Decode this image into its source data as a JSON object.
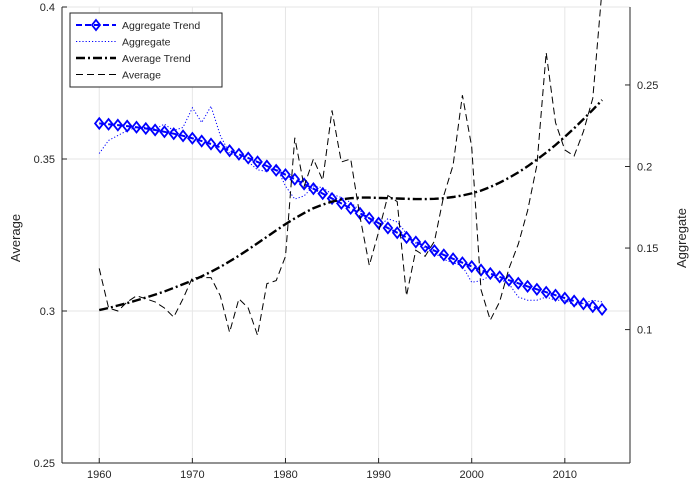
{
  "chart_data": {
    "type": "line",
    "title": "",
    "xlabel": "",
    "ylabel_left": "Average",
    "ylabel_right": "Aggregate",
    "xlim": [
      1956,
      2017
    ],
    "ylim_left": [
      0.25,
      0.4
    ],
    "ylim_right": [
      0.0182,
      0.2978
    ],
    "x_ticks": [
      1960,
      1970,
      1980,
      1990,
      2000,
      2010
    ],
    "x_tick_labels": [
      "1960",
      "1970",
      "1980",
      "1990",
      "2000",
      "2010"
    ],
    "y_left_ticks": [
      0.25,
      0.3,
      0.35,
      0.4
    ],
    "y_left_tick_labels": [
      "0.25",
      "0.3",
      "0.35",
      "0.4"
    ],
    "y_right_ticks": [
      0.1,
      0.15,
      0.2,
      0.25
    ],
    "y_right_tick_labels": [
      "0.1",
      "0.15",
      "0.2",
      "0.25"
    ],
    "grid": true,
    "legend_position": "top-left",
    "series": [
      {
        "name": "Aggregate Trend",
        "axis": "right",
        "style": "dashed-diamond",
        "color": "#0000ff",
        "x": [
          1960,
          1961,
          1962,
          1963,
          1964,
          1965,
          1966,
          1967,
          1968,
          1969,
          1970,
          1971,
          1972,
          1973,
          1974,
          1975,
          1976,
          1977,
          1978,
          1979,
          1980,
          1981,
          1982,
          1983,
          1984,
          1985,
          1986,
          1987,
          1988,
          1989,
          1990,
          1991,
          1992,
          1993,
          1994,
          1995,
          1996,
          1997,
          1998,
          1999,
          2000,
          2001,
          2002,
          2003,
          2004,
          2005,
          2006,
          2007,
          2008,
          2009,
          2010,
          2011,
          2012,
          2013,
          2014
        ],
        "y": [
          0.2264,
          0.2259,
          0.2254,
          0.2248,
          0.2241,
          0.2233,
          0.2224,
          0.2213,
          0.2201,
          0.2188,
          0.2173,
          0.2156,
          0.2138,
          0.2118,
          0.2097,
          0.2075,
          0.2052,
          0.2028,
          0.2003,
          0.1977,
          0.195,
          0.1922,
          0.1893,
          0.1864,
          0.1834,
          0.1804,
          0.1774,
          0.1743,
          0.1713,
          0.1683,
          0.1653,
          0.1623,
          0.1594,
          0.1565,
          0.1537,
          0.151,
          0.1484,
          0.1458,
          0.1434,
          0.141,
          0.1387,
          0.1365,
          0.1344,
          0.1323,
          0.1303,
          0.1284,
          0.1265,
          0.1247,
          0.1229,
          0.1211,
          0.1193,
          0.1175,
          0.1158,
          0.1141,
          0.1124
        ]
      },
      {
        "name": "Aggregate",
        "axis": "right",
        "style": "dotted",
        "color": "#0000ff",
        "x": [
          1960,
          1961,
          1962,
          1963,
          1964,
          1965,
          1966,
          1967,
          1968,
          1969,
          1970,
          1971,
          1972,
          1973,
          1974,
          1975,
          1976,
          1977,
          1978,
          1979,
          1980,
          1981,
          1982,
          1983,
          1984,
          1985,
          1986,
          1987,
          1988,
          1989,
          1990,
          1991,
          1992,
          1993,
          1994,
          1995,
          1996,
          1997,
          1998,
          1999,
          2000,
          2001,
          2002,
          2003,
          2004,
          2005,
          2006,
          2007,
          2008,
          2009,
          2010,
          2011,
          2012,
          2013,
          2014
        ],
        "y": [
          0.208,
          0.216,
          0.219,
          0.222,
          0.224,
          0.224,
          0.223,
          0.226,
          0.222,
          0.224,
          0.236,
          0.227,
          0.237,
          0.219,
          0.208,
          0.206,
          0.203,
          0.198,
          0.197,
          0.2,
          0.188,
          0.18,
          0.182,
          0.188,
          0.187,
          0.183,
          0.181,
          0.178,
          0.173,
          0.168,
          0.163,
          0.168,
          0.166,
          0.159,
          0.153,
          0.15,
          0.147,
          0.143,
          0.141,
          0.139,
          0.129,
          0.13,
          0.133,
          0.131,
          0.128,
          0.12,
          0.118,
          0.118,
          0.12,
          0.118,
          0.118,
          0.115,
          0.116,
          0.118,
          0.117
        ]
      },
      {
        "name": "Average Trend",
        "axis": "left",
        "style": "dash-dot",
        "color": "#000000",
        "x": [
          1960,
          1961,
          1962,
          1963,
          1964,
          1965,
          1966,
          1967,
          1968,
          1969,
          1970,
          1971,
          1972,
          1973,
          1974,
          1975,
          1976,
          1977,
          1978,
          1979,
          1980,
          1981,
          1982,
          1983,
          1984,
          1985,
          1986,
          1987,
          1988,
          1989,
          1990,
          1991,
          1992,
          1993,
          1994,
          1995,
          1996,
          1997,
          1998,
          1999,
          2000,
          2001,
          2002,
          2003,
          2004,
          2005,
          2006,
          2007,
          2008,
          2009,
          2010,
          2011,
          2012,
          2013,
          2014
        ],
        "y": [
          0.3003,
          0.301,
          0.3018,
          0.3026,
          0.3035,
          0.3044,
          0.3054,
          0.3064,
          0.3076,
          0.3088,
          0.31,
          0.3114,
          0.3129,
          0.3145,
          0.3163,
          0.3182,
          0.3202,
          0.3223,
          0.3244,
          0.3265,
          0.3286,
          0.3305,
          0.3322,
          0.3338,
          0.335,
          0.336,
          0.3367,
          0.3371,
          0.3373,
          0.3373,
          0.3372,
          0.3371,
          0.337,
          0.3369,
          0.3368,
          0.3368,
          0.3369,
          0.3371,
          0.3375,
          0.338,
          0.3387,
          0.3396,
          0.3408,
          0.3422,
          0.3438,
          0.3456,
          0.3476,
          0.3498,
          0.3521,
          0.3546,
          0.3573,
          0.3601,
          0.3631,
          0.3662,
          0.3694
        ]
      },
      {
        "name": "Average",
        "axis": "left",
        "style": "dashed",
        "color": "#000000",
        "x": [
          1960,
          1961,
          1962,
          1963,
          1964,
          1965,
          1966,
          1967,
          1968,
          1969,
          1970,
          1971,
          1972,
          1973,
          1974,
          1975,
          1976,
          1977,
          1978,
          1979,
          1980,
          1981,
          1982,
          1983,
          1984,
          1985,
          1986,
          1987,
          1988,
          1989,
          1990,
          1991,
          1992,
          1993,
          1994,
          1995,
          1996,
          1997,
          1998,
          1999,
          2000,
          2001,
          2002,
          2003,
          2004,
          2005,
          2006,
          2007,
          2008,
          2009,
          2010,
          2011,
          2012,
          2013,
          2014
        ],
        "y": [
          0.314,
          0.301,
          0.3,
          0.303,
          0.305,
          0.304,
          0.303,
          0.301,
          0.298,
          0.304,
          0.311,
          0.311,
          0.311,
          0.305,
          0.293,
          0.304,
          0.301,
          0.292,
          0.309,
          0.31,
          0.318,
          0.357,
          0.341,
          0.35,
          0.343,
          0.366,
          0.349,
          0.35,
          0.331,
          0.315,
          0.326,
          0.338,
          0.336,
          0.305,
          0.32,
          0.318,
          0.323,
          0.338,
          0.348,
          0.371,
          0.354,
          0.307,
          0.297,
          0.303,
          0.314,
          0.322,
          0.333,
          0.348,
          0.385,
          0.362,
          0.353,
          0.351,
          0.359,
          0.37,
          0.406
        ]
      }
    ]
  }
}
